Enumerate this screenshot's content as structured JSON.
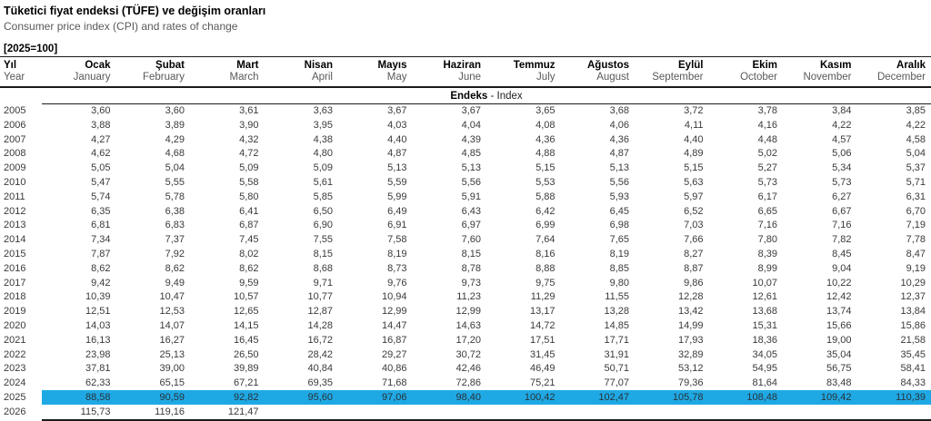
{
  "header": {
    "title_tr": "Tüketici fiyat endeksi (TÜFE) ve değişim oranları",
    "title_en": "Consumer price index (CPI) and rates of change",
    "base_note": "[2025=100]"
  },
  "colors": {
    "highlight_row": "#1fa9e4",
    "rule_lines": "#1a1a1a",
    "secondary_text": "#595959"
  },
  "table": {
    "year_col": {
      "tr": "Yıl",
      "en": "Year"
    },
    "months": [
      {
        "tr": "Ocak",
        "en": "January"
      },
      {
        "tr": "Şubat",
        "en": "February"
      },
      {
        "tr": "Mart",
        "en": "March"
      },
      {
        "tr": "Nisan",
        "en": "April"
      },
      {
        "tr": "Mayıs",
        "en": "May"
      },
      {
        "tr": "Haziran",
        "en": "June"
      },
      {
        "tr": "Temmuz",
        "en": "July"
      },
      {
        "tr": "Ağustos",
        "en": "August"
      },
      {
        "tr": "Eylül",
        "en": "September"
      },
      {
        "tr": "Ekim",
        "en": "October"
      },
      {
        "tr": "Kasım",
        "en": "November"
      },
      {
        "tr": "Aralık",
        "en": "December"
      }
    ],
    "section": {
      "label_bold": "Endeks",
      "label_rest": " - Index"
    },
    "highlight_year": "2025",
    "rows": [
      {
        "year": "2005",
        "values": [
          "3,60",
          "3,60",
          "3,61",
          "3,63",
          "3,67",
          "3,67",
          "3,65",
          "3,68",
          "3,72",
          "3,78",
          "3,84",
          "3,85"
        ]
      },
      {
        "year": "2006",
        "values": [
          "3,88",
          "3,89",
          "3,90",
          "3,95",
          "4,03",
          "4,04",
          "4,08",
          "4,06",
          "4,11",
          "4,16",
          "4,22",
          "4,22"
        ]
      },
      {
        "year": "2007",
        "values": [
          "4,27",
          "4,29",
          "4,32",
          "4,38",
          "4,40",
          "4,39",
          "4,36",
          "4,36",
          "4,40",
          "4,48",
          "4,57",
          "4,58"
        ]
      },
      {
        "year": "2008",
        "values": [
          "4,62",
          "4,68",
          "4,72",
          "4,80",
          "4,87",
          "4,85",
          "4,88",
          "4,87",
          "4,89",
          "5,02",
          "5,06",
          "5,04"
        ]
      },
      {
        "year": "2009",
        "values": [
          "5,05",
          "5,04",
          "5,09",
          "5,09",
          "5,13",
          "5,13",
          "5,15",
          "5,13",
          "5,15",
          "5,27",
          "5,34",
          "5,37"
        ]
      },
      {
        "year": "2010",
        "values": [
          "5,47",
          "5,55",
          "5,58",
          "5,61",
          "5,59",
          "5,56",
          "5,53",
          "5,56",
          "5,63",
          "5,73",
          "5,73",
          "5,71"
        ]
      },
      {
        "year": "2011",
        "values": [
          "5,74",
          "5,78",
          "5,80",
          "5,85",
          "5,99",
          "5,91",
          "5,88",
          "5,93",
          "5,97",
          "6,17",
          "6,27",
          "6,31"
        ]
      },
      {
        "year": "2012",
        "values": [
          "6,35",
          "6,38",
          "6,41",
          "6,50",
          "6,49",
          "6,43",
          "6,42",
          "6,45",
          "6,52",
          "6,65",
          "6,67",
          "6,70"
        ]
      },
      {
        "year": "2013",
        "values": [
          "6,81",
          "6,83",
          "6,87",
          "6,90",
          "6,91",
          "6,97",
          "6,99",
          "6,98",
          "7,03",
          "7,16",
          "7,16",
          "7,19"
        ]
      },
      {
        "year": "2014",
        "values": [
          "7,34",
          "7,37",
          "7,45",
          "7,55",
          "7,58",
          "7,60",
          "7,64",
          "7,65",
          "7,66",
          "7,80",
          "7,82",
          "7,78"
        ]
      },
      {
        "year": "2015",
        "values": [
          "7,87",
          "7,92",
          "8,02",
          "8,15",
          "8,19",
          "8,15",
          "8,16",
          "8,19",
          "8,27",
          "8,39",
          "8,45",
          "8,47"
        ]
      },
      {
        "year": "2016",
        "values": [
          "8,62",
          "8,62",
          "8,62",
          "8,68",
          "8,73",
          "8,78",
          "8,88",
          "8,85",
          "8,87",
          "8,99",
          "9,04",
          "9,19"
        ]
      },
      {
        "year": "2017",
        "values": [
          "9,42",
          "9,49",
          "9,59",
          "9,71",
          "9,76",
          "9,73",
          "9,75",
          "9,80",
          "9,86",
          "10,07",
          "10,22",
          "10,29"
        ]
      },
      {
        "year": "2018",
        "values": [
          "10,39",
          "10,47",
          "10,57",
          "10,77",
          "10,94",
          "11,23",
          "11,29",
          "11,55",
          "12,28",
          "12,61",
          "12,42",
          "12,37"
        ]
      },
      {
        "year": "2019",
        "values": [
          "12,51",
          "12,53",
          "12,65",
          "12,87",
          "12,99",
          "12,99",
          "13,17",
          "13,28",
          "13,42",
          "13,68",
          "13,74",
          "13,84"
        ]
      },
      {
        "year": "2020",
        "values": [
          "14,03",
          "14,07",
          "14,15",
          "14,28",
          "14,47",
          "14,63",
          "14,72",
          "14,85",
          "14,99",
          "15,31",
          "15,66",
          "15,86"
        ]
      },
      {
        "year": "2021",
        "values": [
          "16,13",
          "16,27",
          "16,45",
          "16,72",
          "16,87",
          "17,20",
          "17,51",
          "17,71",
          "17,93",
          "18,36",
          "19,00",
          "21,58"
        ]
      },
      {
        "year": "2022",
        "values": [
          "23,98",
          "25,13",
          "26,50",
          "28,42",
          "29,27",
          "30,72",
          "31,45",
          "31,91",
          "32,89",
          "34,05",
          "35,04",
          "35,45"
        ]
      },
      {
        "year": "2023",
        "values": [
          "37,81",
          "39,00",
          "39,89",
          "40,84",
          "40,86",
          "42,46",
          "46,49",
          "50,71",
          "53,12",
          "54,95",
          "56,75",
          "58,41"
        ]
      },
      {
        "year": "2024",
        "values": [
          "62,33",
          "65,15",
          "67,21",
          "69,35",
          "71,68",
          "72,86",
          "75,21",
          "77,07",
          "79,36",
          "81,64",
          "83,48",
          "84,33"
        ]
      },
      {
        "year": "2025",
        "values": [
          "88,58",
          "90,59",
          "92,82",
          "95,60",
          "97,06",
          "98,40",
          "100,42",
          "102,47",
          "105,78",
          "108,48",
          "109,42",
          "110,39"
        ]
      },
      {
        "year": "2026",
        "values": [
          "115,73",
          "119,16",
          "121,47",
          "",
          "",
          "",
          "",
          "",
          "",
          "",
          "",
          ""
        ]
      }
    ]
  }
}
